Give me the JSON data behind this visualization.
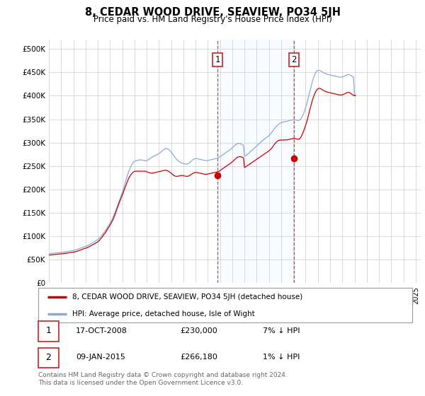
{
  "title": "8, CEDAR WOOD DRIVE, SEAVIEW, PO34 5JH",
  "subtitle": "Price paid vs. HM Land Registry's House Price Index (HPI)",
  "sale1_date": "2008-10-17",
  "sale1_price": 230000,
  "sale2_date": "2015-01-09",
  "sale2_price": 266180,
  "legend1": "8, CEDAR WOOD DRIVE, SEAVIEW, PO34 5JH (detached house)",
  "legend2": "HPI: Average price, detached house, Isle of Wight",
  "table1_date": "17-OCT-2008",
  "table1_price": "£230,000",
  "table1_pct": "7% ↓ HPI",
  "table2_date": "09-JAN-2015",
  "table2_price": "£266,180",
  "table2_pct": "1% ↓ HPI",
  "footer": "Contains HM Land Registry data © Crown copyright and database right 2024.\nThis data is licensed under the Open Government Licence v3.0.",
  "line_color_property": "#cc0000",
  "line_color_hpi": "#88aadd",
  "marker_color": "#cc0000",
  "shade_color": "#ddeeff",
  "ylim_min": 0,
  "ylim_max": 520000,
  "start_year": 1995,
  "end_year": 2025,
  "hpi_monthly": [
    63000,
    63200,
    63400,
    63600,
    63800,
    64000,
    64200,
    64400,
    64600,
    64800,
    65000,
    65200,
    65400,
    65700,
    66000,
    66400,
    66800,
    67200,
    67600,
    68000,
    68400,
    68700,
    69000,
    69300,
    69600,
    70200,
    70800,
    71600,
    72400,
    73200,
    74000,
    74800,
    75600,
    76300,
    77000,
    77700,
    78400,
    79200,
    80100,
    81200,
    82400,
    83700,
    85000,
    86300,
    87600,
    89000,
    90400,
    91800,
    93200,
    95000,
    97000,
    99500,
    102000,
    105000,
    108000,
    111000,
    114000,
    117500,
    121000,
    124500,
    128000,
    132000,
    136000,
    141000,
    146000,
    151500,
    157000,
    163000,
    169000,
    175000,
    181000,
    187000,
    193000,
    200000,
    207000,
    214500,
    222000,
    229000,
    236000,
    242000,
    247000,
    251500,
    255000,
    258000,
    260000,
    261000,
    261500,
    262000,
    262500,
    263000,
    263200,
    263000,
    262500,
    262000,
    261500,
    261000,
    261500,
    262500,
    264000,
    265500,
    267000,
    268500,
    270000,
    271000,
    272000,
    273000,
    274000,
    275000,
    276500,
    278000,
    280000,
    282000,
    284000,
    285500,
    287000,
    287500,
    287000,
    286000,
    284500,
    282500,
    280000,
    277000,
    274000,
    271000,
    268000,
    265500,
    263000,
    261000,
    259500,
    258000,
    257000,
    256000,
    255500,
    255000,
    254500,
    254000,
    254500,
    255500,
    257000,
    259000,
    261000,
    263000,
    264500,
    265500,
    266000,
    266000,
    265500,
    265000,
    264500,
    264000,
    263500,
    263000,
    262500,
    262000,
    261500,
    261500,
    262000,
    262500,
    263000,
    263500,
    264000,
    264500,
    265000,
    265500,
    266000,
    266500,
    267500,
    268500,
    270000,
    271500,
    273000,
    274500,
    276000,
    277500,
    279000,
    280500,
    282000,
    283500,
    285000,
    287000,
    289000,
    291000,
    293000,
    295000,
    296500,
    297500,
    298000,
    298000,
    297500,
    296500,
    295500,
    294500,
    271000,
    272000,
    273000,
    275000,
    277000,
    279000,
    281000,
    283000,
    285000,
    287000,
    289000,
    291000,
    293000,
    295000,
    297000,
    299000,
    301000,
    303000,
    305000,
    307000,
    308500,
    310000,
    311500,
    313000,
    315000,
    317500,
    320000,
    322500,
    325500,
    328500,
    331500,
    334000,
    336500,
    338500,
    340000,
    341500,
    342500,
    343500,
    344000,
    344500,
    345000,
    345500,
    346000,
    346500,
    347000,
    347500,
    348000,
    348500,
    349000,
    349000,
    348500,
    348000,
    347500,
    347000,
    348000,
    350000,
    353000,
    357000,
    362000,
    368000,
    375000,
    382000,
    390000,
    398000,
    407000,
    416000,
    425000,
    433000,
    440000,
    446000,
    450000,
    453000,
    454000,
    454500,
    454000,
    453000,
    451500,
    450000,
    449000,
    448000,
    447000,
    446000,
    445500,
    445000,
    444500,
    444000,
    443500,
    443000,
    442500,
    442000,
    441500,
    441000,
    440500,
    440000,
    440000,
    440000,
    440000,
    441000,
    442000,
    443000,
    444000,
    445000,
    445500,
    445000,
    444000,
    442500,
    441000,
    440000,
    400000,
    401000
  ],
  "prop_monthly": [
    60000,
    60200,
    60400,
    60600,
    60800,
    61000,
    61200,
    61400,
    61600,
    61800,
    62000,
    62200,
    62400,
    62700,
    63000,
    63300,
    63600,
    63900,
    64200,
    64500,
    64800,
    65100,
    65400,
    65700,
    66000,
    66500,
    67000,
    67700,
    68400,
    69200,
    70000,
    70800,
    71600,
    72400,
    73200,
    73900,
    74600,
    75400,
    76200,
    77200,
    78300,
    79500,
    80700,
    81900,
    83200,
    84500,
    85800,
    87100,
    88400,
    90300,
    92500,
    95000,
    97500,
    100500,
    103500,
    106500,
    109500,
    113000,
    116500,
    120000,
    123500,
    127500,
    131500,
    136000,
    141000,
    147000,
    153000,
    159500,
    165500,
    171500,
    177000,
    182500,
    187500,
    193500,
    199500,
    205500,
    211500,
    217000,
    222000,
    226500,
    230000,
    233000,
    235500,
    237500,
    238500,
    239000,
    239000,
    239000,
    239000,
    239000,
    239000,
    239000,
    239000,
    239000,
    239000,
    239000,
    238000,
    237000,
    236000,
    235500,
    235000,
    235000,
    235000,
    235500,
    236000,
    236500,
    237000,
    237500,
    238000,
    238500,
    239000,
    239500,
    240000,
    240500,
    241000,
    241000,
    240500,
    239500,
    238000,
    236500,
    235000,
    233000,
    231000,
    229500,
    228500,
    228000,
    228000,
    228500,
    229000,
    229500,
    230000,
    230000,
    229500,
    229000,
    228500,
    228000,
    228000,
    228500,
    229500,
    231000,
    232500,
    234000,
    235000,
    236000,
    236500,
    236500,
    236000,
    235500,
    235000,
    234500,
    234000,
    233500,
    233000,
    232500,
    232500,
    232500,
    233000,
    233500,
    234000,
    234500,
    235000,
    235500,
    236000,
    236500,
    237000,
    237500,
    238000,
    239000,
    240500,
    242000,
    243500,
    245000,
    246500,
    248000,
    249500,
    251000,
    252500,
    254000,
    255500,
    257000,
    259000,
    261000,
    263000,
    265000,
    267000,
    268500,
    269500,
    270000,
    270000,
    269500,
    268500,
    267500,
    247000,
    248000,
    249500,
    251000,
    252500,
    254000,
    255500,
    257000,
    258500,
    260000,
    261500,
    263000,
    264500,
    266000,
    267500,
    269000,
    270500,
    272000,
    273500,
    275000,
    276500,
    278000,
    279500,
    281000,
    282500,
    284500,
    286500,
    289000,
    292000,
    295000,
    298000,
    300500,
    302500,
    304000,
    305000,
    305500,
    305500,
    305500,
    305500,
    305500,
    306000,
    306000,
    306000,
    306500,
    307000,
    307500,
    308000,
    308500,
    309000,
    309000,
    308500,
    308000,
    307500,
    307000,
    308000,
    310500,
    314500,
    319000,
    324500,
    330500,
    337000,
    344000,
    352000,
    360000,
    368500,
    377000,
    385500,
    393000,
    399500,
    405000,
    409500,
    413000,
    415000,
    416000,
    416000,
    415000,
    413500,
    412000,
    411000,
    410000,
    409000,
    408000,
    407500,
    407000,
    406500,
    406000,
    405500,
    405000,
    404500,
    404000,
    403500,
    403000,
    402500,
    402000,
    402000,
    402000,
    402000,
    403000,
    404000,
    405000,
    406000,
    407000,
    407500,
    407000,
    405500,
    404000,
    402500,
    401000,
    400000,
    401000
  ]
}
